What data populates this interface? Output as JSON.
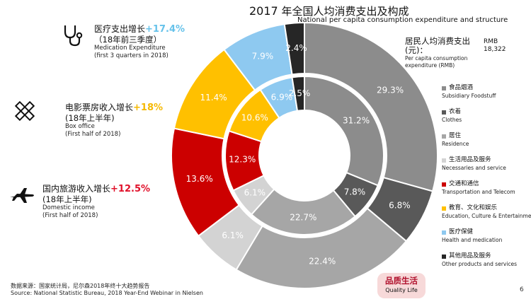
{
  "title": {
    "year": "2017",
    "zh": "年全国人均消费支出及构成",
    "en": "National per capita consumption expenditure and structure"
  },
  "total": {
    "zh_line1": "居民人均消费支出",
    "zh_line2": "(元)：",
    "en_line1": "Per capita consumption",
    "en_line2": "expenditure (RMB)",
    "unit": "RMB",
    "value": "18,322"
  },
  "callouts": {
    "medical": {
      "zh": "医疗支出增长",
      "pct": "+17.4%",
      "sub": "（18年前三季度）",
      "en1": "Medication Expenditure",
      "en2": "(first 3 quarters in 2018)",
      "color": "#66c2ea"
    },
    "boxoffice": {
      "zh": "电影票房收入增长",
      "pct": "+18%",
      "sub": "(18年上半年)",
      "en1": "Box office",
      "en2": "(First half of 2018)",
      "color": "#f5b800"
    },
    "tourism": {
      "zh": "国内旅游收入增长",
      "pct": "+12.5%",
      "sub": "(18年上半年)",
      "en1": "Domestic income",
      "en2": "(First half of 2018)",
      "color": "#e0102a"
    }
  },
  "legend": [
    {
      "zh": "食品烟酒",
      "en": "Subsidiary Foodstuff",
      "color": "#8c8c8c"
    },
    {
      "zh": "衣着",
      "en": "Clothes",
      "color": "#595959"
    },
    {
      "zh": "居住",
      "en": "Residence",
      "color": "#a6a6a6"
    },
    {
      "zh": "生活用品及服务",
      "en": "Necessaries and service",
      "color": "#d3d3d3"
    },
    {
      "zh": "交通和通信",
      "en": "Transportation and Telecom",
      "color": "#cc0000"
    },
    {
      "zh": "教育、文化和娱乐",
      "en": "Education, Culture & Entertainment",
      "color": "#ffc000"
    },
    {
      "zh": "医疗保健",
      "en": "Health and medication",
      "color": "#8ec9f0"
    },
    {
      "zh": "其他用品及服务",
      "en": "Other products and services",
      "color": "#262626"
    }
  ],
  "chart_data": {
    "type": "pie",
    "title": "2017 年全国人均消费支出及构成",
    "categories": [
      "食品烟酒",
      "衣着",
      "居住",
      "生活用品及服务",
      "交通和通信",
      "教育、文化和娱乐",
      "医疗保健",
      "其他用品及服务"
    ],
    "series": [
      {
        "name": "outer",
        "values": [
          29.3,
          6.8,
          22.4,
          6.1,
          13.6,
          11.4,
          7.9,
          2.4
        ],
        "labels": [
          "29.3%",
          "6.8%",
          "22.4%",
          "6.1%",
          "13.6%",
          "11.4%",
          "7.9%",
          "2.4%"
        ]
      },
      {
        "name": "inner",
        "values": [
          31.2,
          7.8,
          22.7,
          6.1,
          12.3,
          10.6,
          6.9,
          2.5
        ],
        "labels": [
          "31.2%",
          "7.8%",
          "22.7%",
          "6.1%",
          "12.3%",
          "10.6%",
          "6.9%",
          "2.5%"
        ]
      }
    ],
    "colors": [
      "#8c8c8c",
      "#595959",
      "#a6a6a6",
      "#d3d3d3",
      "#cc0000",
      "#ffc000",
      "#8ec9f0",
      "#262626"
    ],
    "label_colors": [
      "#ffffff",
      "#ffffff",
      "#ffffff",
      "#ffffff",
      "#ffffff",
      "#ffffff",
      "#ffffff",
      "#ffffff"
    ]
  },
  "footer": {
    "zh": "数据来源：国家统计局，尼尔森2018年终十大趋势报告",
    "en": "Source: National Statistic Bureau, 2018 Year-End Webinar in Nielsen"
  },
  "badge": {
    "zh": "品质生活",
    "en": "Quality Life"
  },
  "page_number": "6"
}
